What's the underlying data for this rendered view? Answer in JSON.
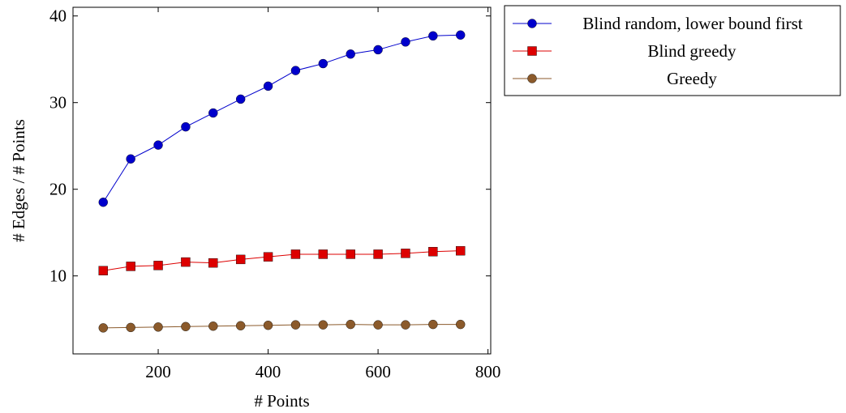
{
  "chart_data": {
    "type": "line",
    "title": "",
    "xlabel": "# Points",
    "ylabel": "# Edges / # Points",
    "xlim": [
      45,
      805
    ],
    "ylim": [
      1,
      41
    ],
    "xticks": [
      200,
      400,
      600,
      800
    ],
    "yticks": [
      10,
      20,
      30,
      40
    ],
    "xtick_labels": [
      "200",
      "400",
      "600",
      "800"
    ],
    "ytick_labels": [
      "10",
      "20",
      "30",
      "40"
    ],
    "grid": false,
    "legend_position": "outside-top-right",
    "x": [
      100,
      150,
      200,
      250,
      300,
      350,
      400,
      450,
      500,
      550,
      600,
      650,
      700,
      750
    ],
    "series": [
      {
        "name": "Blind random, lower bound first",
        "color": "#0000cc",
        "marker": "circle",
        "values": [
          18.5,
          23.5,
          25.1,
          27.2,
          28.8,
          30.4,
          31.9,
          33.7,
          34.5,
          35.6,
          36.1,
          37.0,
          37.7,
          37.8
        ]
      },
      {
        "name": "Blind greedy",
        "color": "#dd0000",
        "marker": "square",
        "values": [
          10.6,
          11.1,
          11.2,
          11.6,
          11.5,
          11.9,
          12.2,
          12.5,
          12.5,
          12.5,
          12.5,
          12.6,
          12.8,
          12.9
        ]
      },
      {
        "name": "Greedy",
        "color": "#8b5a2b",
        "marker": "circle",
        "values": [
          4.0,
          4.05,
          4.1,
          4.15,
          4.2,
          4.25,
          4.3,
          4.35,
          4.35,
          4.4,
          4.35,
          4.35,
          4.4,
          4.4
        ]
      }
    ]
  }
}
